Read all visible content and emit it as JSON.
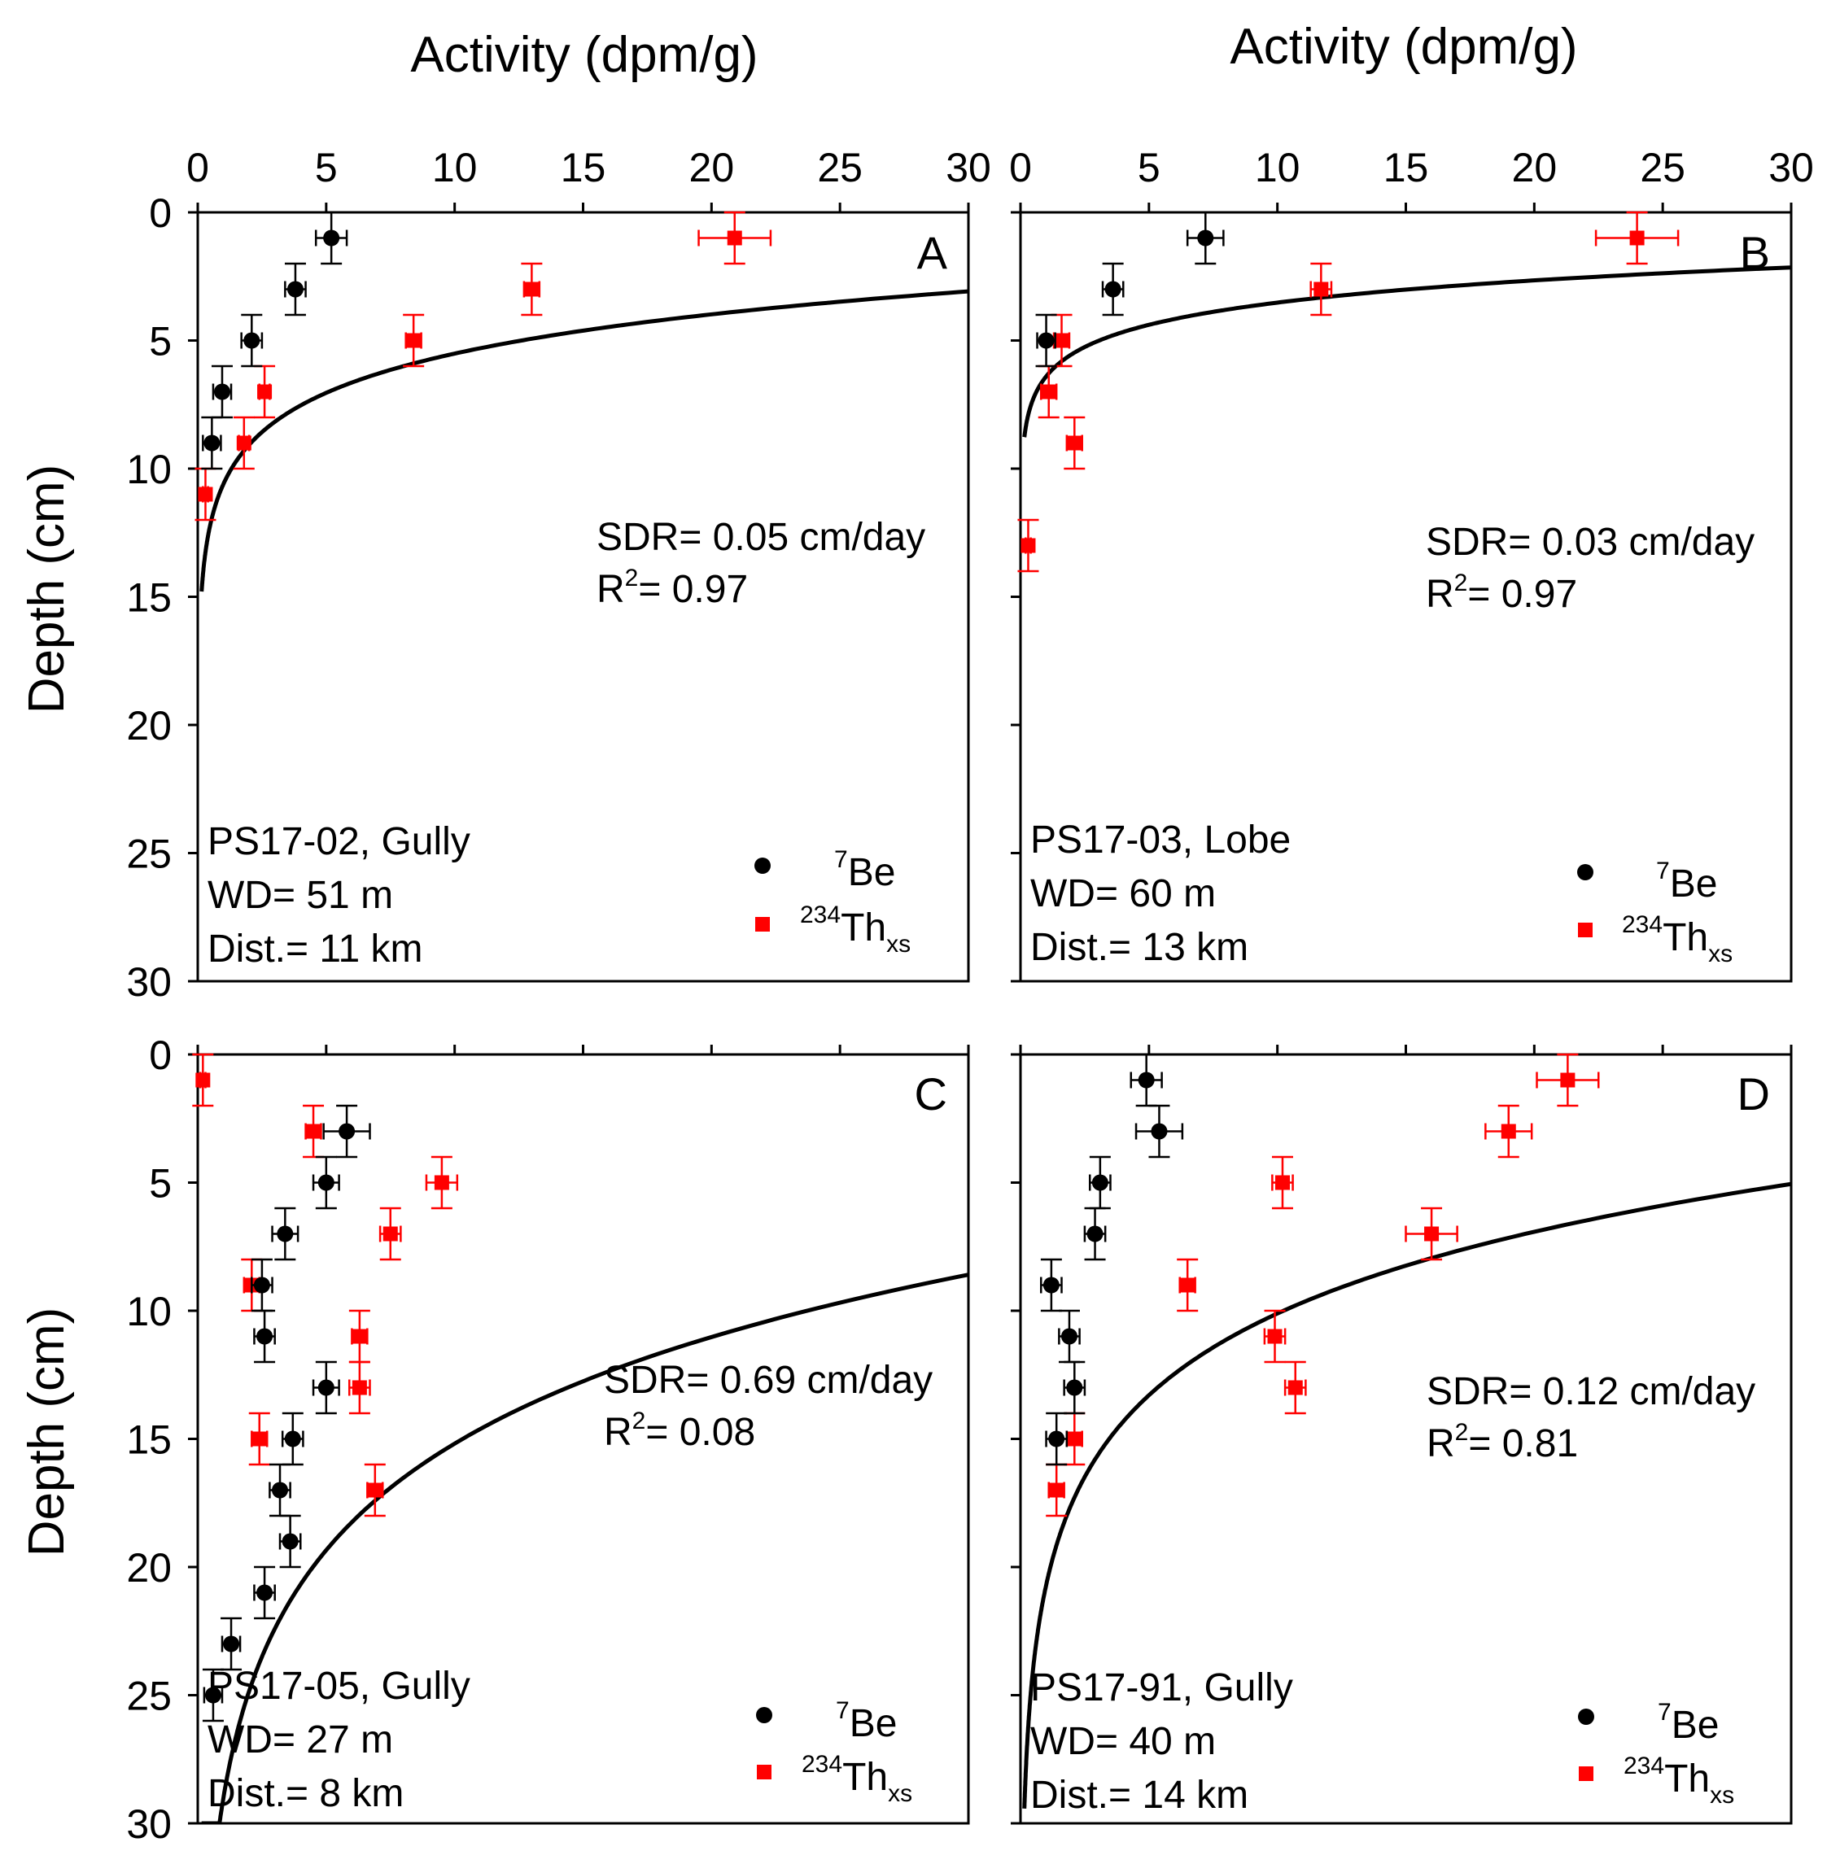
{
  "chart_data": {
    "type": "scatter",
    "layout": "2x2 panels",
    "top_axis_title": "Activity (dpm/g)",
    "y_axis_title": "Depth (cm)",
    "xlim": [
      0,
      30
    ],
    "ylim": [
      0,
      30
    ],
    "y_inverted": true,
    "x_ticks": [
      "0",
      "5",
      "10",
      "15",
      "20",
      "25",
      "30"
    ],
    "y_ticks": [
      "0",
      "5",
      "10",
      "15",
      "20",
      "25",
      "30"
    ],
    "legend": {
      "be": {
        "sup": "7",
        "base": "Be",
        "sub": "",
        "color": "#000000",
        "marker": "circle"
      },
      "th": {
        "sup": "234",
        "base": "Th",
        "sub": "xs",
        "color": "#ff0000",
        "marker": "square"
      }
    },
    "panels": [
      {
        "letter": "A",
        "site": "PS17-02, Gully",
        "wd": "WD= 51 m",
        "dist": "Dist.= 11 km",
        "sdr": "SDR= 0.05 cm/day",
        "r2_prefix": "R",
        "r2_sup": "2",
        "r2_value": "= 0.97",
        "fit": {
          "a0": 10.6,
          "b": 2.21
        },
        "be": [
          {
            "x": 5.2,
            "y": 1,
            "xerr": 0.6,
            "yerr": 1
          },
          {
            "x": 3.8,
            "y": 3,
            "xerr": 0.4,
            "yerr": 1
          },
          {
            "x": 2.1,
            "y": 5,
            "xerr": 0.4,
            "yerr": 1
          },
          {
            "x": 0.95,
            "y": 7,
            "xerr": 0.35,
            "yerr": 1
          },
          {
            "x": 0.55,
            "y": 9,
            "xerr": 0.35,
            "yerr": 1
          }
        ],
        "th": [
          {
            "x": 20.9,
            "y": 1,
            "xerr": 1.4,
            "yerr": 1
          },
          {
            "x": 13.0,
            "y": 3,
            "xerr": 0.3,
            "yerr": 1
          },
          {
            "x": 8.4,
            "y": 5,
            "xerr": 0.3,
            "yerr": 1
          },
          {
            "x": 2.6,
            "y": 7,
            "xerr": 0.2,
            "yerr": 1
          },
          {
            "x": 1.8,
            "y": 9,
            "xerr": 0.2,
            "yerr": 1
          },
          {
            "x": 0.3,
            "y": 11,
            "xerr": 0.1,
            "yerr": 1
          }
        ]
      },
      {
        "letter": "B",
        "site": "PS17-03, Lobe",
        "wd": "WD= 60 m",
        "dist": "Dist.= 13 km",
        "sdr": "SDR= 0.03 cm/day",
        "r2_prefix": "R",
        "r2_sup": "2",
        "r2_value": "= 0.97",
        "fit": {
          "a0": 6.4,
          "b": 1.25
        },
        "be": [
          {
            "x": 7.2,
            "y": 1,
            "xerr": 0.7,
            "yerr": 1
          },
          {
            "x": 3.6,
            "y": 3,
            "xerr": 0.4,
            "yerr": 1
          },
          {
            "x": 1.0,
            "y": 5,
            "xerr": 0.35,
            "yerr": 1
          }
        ],
        "th": [
          {
            "x": 24.0,
            "y": 1,
            "xerr": 1.6,
            "yerr": 1
          },
          {
            "x": 11.7,
            "y": 3,
            "xerr": 0.4,
            "yerr": 1
          },
          {
            "x": 1.6,
            "y": 5,
            "xerr": 0.3,
            "yerr": 1
          },
          {
            "x": 1.1,
            "y": 7,
            "xerr": 0.3,
            "yerr": 1
          },
          {
            "x": 2.1,
            "y": 9,
            "xerr": 0.3,
            "yerr": 1
          },
          {
            "x": 0.3,
            "y": 13,
            "xerr": 0.1,
            "yerr": 1
          }
        ]
      },
      {
        "letter": "C",
        "site": "PS17-05, Gully",
        "wd": "WD= 27 m",
        "dist": "Dist.= 8 km",
        "sdr": "SDR= 0.69 cm/day",
        "r2_prefix": "R",
        "r2_sup": "2",
        "r2_value": "= 0.08",
        "fit": {
          "a0": 29.0,
          "b": 6.0
        },
        "be": [
          {
            "x": 5.8,
            "y": 3,
            "xerr": 0.9,
            "yerr": 1
          },
          {
            "x": 5.0,
            "y": 5,
            "xerr": 0.5,
            "yerr": 1
          },
          {
            "x": 3.4,
            "y": 7,
            "xerr": 0.5,
            "yerr": 1
          },
          {
            "x": 2.5,
            "y": 9,
            "xerr": 0.4,
            "yerr": 1
          },
          {
            "x": 2.6,
            "y": 11,
            "xerr": 0.4,
            "yerr": 1
          },
          {
            "x": 5.0,
            "y": 13,
            "xerr": 0.5,
            "yerr": 1
          },
          {
            "x": 3.7,
            "y": 15,
            "xerr": 0.4,
            "yerr": 1
          },
          {
            "x": 3.2,
            "y": 17,
            "xerr": 0.4,
            "yerr": 1
          },
          {
            "x": 3.6,
            "y": 19,
            "xerr": 0.4,
            "yerr": 1
          },
          {
            "x": 2.6,
            "y": 21,
            "xerr": 0.4,
            "yerr": 1
          },
          {
            "x": 1.3,
            "y": 23,
            "xerr": 0.35,
            "yerr": 1
          },
          {
            "x": 0.6,
            "y": 25,
            "xerr": 0.35,
            "yerr": 1
          }
        ],
        "th": [
          {
            "x": 0.2,
            "y": 1,
            "xerr": 0.1,
            "yerr": 1
          },
          {
            "x": 4.5,
            "y": 3,
            "xerr": 0.3,
            "yerr": 1
          },
          {
            "x": 9.5,
            "y": 5,
            "xerr": 0.6,
            "yerr": 1
          },
          {
            "x": 7.5,
            "y": 7,
            "xerr": 0.4,
            "yerr": 1
          },
          {
            "x": 2.1,
            "y": 9,
            "xerr": 0.3,
            "yerr": 1
          },
          {
            "x": 6.3,
            "y": 11,
            "xerr": 0.3,
            "yerr": 1
          },
          {
            "x": 6.3,
            "y": 13,
            "xerr": 0.4,
            "yerr": 1
          },
          {
            "x": 2.4,
            "y": 15,
            "xerr": 0.3,
            "yerr": 1
          },
          {
            "x": 6.9,
            "y": 17,
            "xerr": 0.3,
            "yerr": 1
          }
        ]
      },
      {
        "letter": "D",
        "site": "PS17-91, Gully",
        "wd": "WD= 40 m",
        "dist": "Dist.= 14 km",
        "sdr": "SDR= 0.12 cm/day",
        "r2_prefix": "R",
        "r2_sup": "2",
        "r2_value": "= 0.81",
        "fit": {
          "a0": 20.7,
          "b": 4.6
        },
        "be": [
          {
            "x": 4.9,
            "y": 1,
            "xerr": 0.6,
            "yerr": 1
          },
          {
            "x": 5.4,
            "y": 3,
            "xerr": 0.9,
            "yerr": 1
          },
          {
            "x": 3.1,
            "y": 5,
            "xerr": 0.4,
            "yerr": 1
          },
          {
            "x": 2.9,
            "y": 7,
            "xerr": 0.4,
            "yerr": 1
          },
          {
            "x": 1.2,
            "y": 9,
            "xerr": 0.4,
            "yerr": 1
          },
          {
            "x": 1.9,
            "y": 11,
            "xerr": 0.4,
            "yerr": 1
          },
          {
            "x": 2.1,
            "y": 13,
            "xerr": 0.4,
            "yerr": 1
          },
          {
            "x": 1.4,
            "y": 15,
            "xerr": 0.4,
            "yerr": 1
          }
        ],
        "th": [
          {
            "x": 21.3,
            "y": 1,
            "xerr": 1.2,
            "yerr": 1
          },
          {
            "x": 19.0,
            "y": 3,
            "xerr": 0.9,
            "yerr": 1
          },
          {
            "x": 10.2,
            "y": 5,
            "xerr": 0.4,
            "yerr": 1
          },
          {
            "x": 16.0,
            "y": 7,
            "xerr": 1.0,
            "yerr": 1
          },
          {
            "x": 6.5,
            "y": 9,
            "xerr": 0.3,
            "yerr": 1
          },
          {
            "x": 9.9,
            "y": 11,
            "xerr": 0.4,
            "yerr": 1
          },
          {
            "x": 10.7,
            "y": 13,
            "xerr": 0.4,
            "yerr": 1
          },
          {
            "x": 2.1,
            "y": 15,
            "xerr": 0.3,
            "yerr": 1
          },
          {
            "x": 1.4,
            "y": 17,
            "xerr": 0.3,
            "yerr": 1
          }
        ]
      }
    ]
  }
}
